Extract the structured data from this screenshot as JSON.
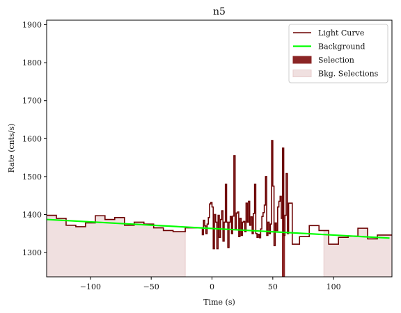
{
  "chart_data": {
    "type": "line",
    "title": "n5",
    "xlabel": "Time (s)",
    "ylabel": "Rate (cnts/s)",
    "xlim": [
      -136,
      148
    ],
    "ylim": [
      1236,
      1912
    ],
    "xticks": [
      -100,
      -50,
      0,
      50,
      100
    ],
    "yticks": [
      1300,
      1400,
      1500,
      1600,
      1700,
      1800,
      1900
    ],
    "grid": false,
    "legend_position": "top-right",
    "colors": {
      "light_curve": "#6b0000",
      "background": "#00ff00",
      "selection": "#8b2525",
      "bkg_selection": "#f0e0e0"
    },
    "legend": [
      {
        "key": "light_curve",
        "label": "Light Curve"
      },
      {
        "key": "background",
        "label": "Background"
      },
      {
        "key": "selection",
        "label": "Selection"
      },
      {
        "key": "bkg_selection",
        "label": "Bkg. Selections"
      }
    ],
    "bkg_selections": [
      [
        -136,
        -22
      ],
      [
        92,
        148
      ]
    ],
    "selection_interval": [
      57.5,
      60
    ],
    "background_line": {
      "x": [
        -136,
        146
      ],
      "y": [
        1387,
        1338
      ]
    },
    "light_curve": {
      "x": [
        -136,
        -128,
        -120,
        -112,
        -104,
        -96,
        -88,
        -80,
        -72,
        -64,
        -56,
        -48,
        -40,
        -32,
        -22,
        -8,
        -7,
        -6,
        -5,
        -4,
        -3,
        -2,
        -1,
        0,
        1,
        2,
        3,
        4,
        5,
        6,
        7,
        8,
        9,
        10,
        11,
        12,
        13,
        14,
        15,
        16,
        17,
        18,
        19,
        20,
        21,
        22,
        23,
        24,
        25,
        26,
        27,
        28,
        29,
        30,
        31,
        32,
        33,
        34,
        35,
        36,
        37,
        38,
        39,
        40,
        41,
        42,
        43,
        44,
        45,
        46,
        47,
        48,
        49,
        50,
        51,
        52,
        53,
        54,
        55,
        56,
        57,
        58,
        59,
        60,
        61,
        62,
        63,
        66,
        72,
        80,
        88,
        96,
        104,
        112,
        120,
        128,
        136,
        144
      ],
      "y": [
        1398,
        1390,
        1372,
        1368,
        1378,
        1397,
        1387,
        1392,
        1372,
        1380,
        1375,
        1365,
        1358,
        1355,
        1365,
        1347,
        1385,
        1370,
        1350,
        1375,
        1392,
        1428,
        1432,
        1420,
        1310,
        1400,
        1380,
        1310,
        1398,
        1340,
        1387,
        1410,
        1330,
        1380,
        1480,
        1380,
        1313,
        1380,
        1395,
        1350,
        1396,
        1555,
        1360,
        1404,
        1407,
        1342,
        1390,
        1345,
        1380,
        1382,
        1355,
        1430,
        1380,
        1435,
        1372,
        1394,
        1350,
        1403,
        1480,
        1350,
        1340,
        1348,
        1339,
        1362,
        1395,
        1405,
        1425,
        1500,
        1345,
        1380,
        1350,
        1375,
        1595,
        1475,
        1318,
        1378,
        1358,
        1420,
        1435,
        1448,
        1390,
        1575,
        1345,
        1398,
        1508,
        1350,
        1430,
        1322,
        1342,
        1371,
        1358,
        1322,
        1340,
        1343,
        1364,
        1336,
        1346,
        1346
      ]
    }
  }
}
